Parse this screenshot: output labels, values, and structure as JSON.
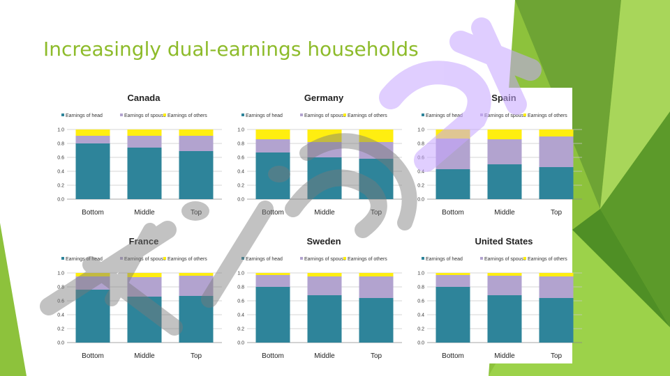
{
  "slide": {
    "title": "Increasingly dual-earnings households"
  },
  "colors": {
    "head": "#2e849a",
    "spouse": "#b2a3cf",
    "others": "#ffee10",
    "accent": "#8dbb2a"
  },
  "chart_data": [
    {
      "type": "bar",
      "title": "Canada",
      "categories": [
        "Bottom",
        "Middle",
        "Top"
      ],
      "series": [
        {
          "name": "Earnings of head",
          "values": [
            0.8,
            0.74,
            0.69
          ]
        },
        {
          "name": "Earnings of spouse",
          "values": [
            0.11,
            0.17,
            0.22
          ]
        },
        {
          "name": "Earnings of others",
          "values": [
            0.09,
            0.09,
            0.09
          ]
        }
      ],
      "ylim": [
        0,
        1.0
      ],
      "yticks": [
        "0.0",
        "0.2",
        "0.4",
        "0.6",
        "0.8",
        "1.0"
      ],
      "stacked": true,
      "grid": true,
      "legend": "top"
    },
    {
      "type": "bar",
      "title": "Germany",
      "categories": [
        "Bottom",
        "Middle",
        "Top"
      ],
      "series": [
        {
          "name": "Earnings of head",
          "values": [
            0.67,
            0.6,
            0.58
          ]
        },
        {
          "name": "Earnings of spouse",
          "values": [
            0.19,
            0.22,
            0.24
          ]
        },
        {
          "name": "Earnings of others",
          "values": [
            0.14,
            0.18,
            0.18
          ]
        }
      ],
      "ylim": [
        0,
        1.0
      ],
      "yticks": [
        "0.0",
        "0.2",
        "0.4",
        "0.6",
        "0.8",
        "1.0"
      ],
      "stacked": true,
      "grid": true,
      "legend": "top"
    },
    {
      "type": "bar",
      "title": "Spain",
      "categories": [
        "Bottom",
        "Middle",
        "Top"
      ],
      "series": [
        {
          "name": "Earnings of head",
          "values": [
            0.43,
            0.5,
            0.46
          ]
        },
        {
          "name": "Earnings of spouse",
          "values": [
            0.44,
            0.36,
            0.44
          ]
        },
        {
          "name": "Earnings of others",
          "values": [
            0.13,
            0.14,
            0.1
          ]
        }
      ],
      "ylim": [
        0,
        1.0
      ],
      "yticks": [
        "0.0",
        "0.2",
        "0.4",
        "0.6",
        "0.8",
        "1.0"
      ],
      "stacked": true,
      "grid": true,
      "legend": "top"
    },
    {
      "type": "bar",
      "title": "France",
      "categories": [
        "Bottom",
        "Middle",
        "Top"
      ],
      "series": [
        {
          "name": "Earnings of head",
          "values": [
            0.76,
            0.66,
            0.67
          ]
        },
        {
          "name": "Earnings of spouse",
          "values": [
            0.19,
            0.28,
            0.29
          ]
        },
        {
          "name": "Earnings of others",
          "values": [
            0.05,
            0.06,
            0.04
          ]
        }
      ],
      "ylim": [
        0,
        1.0
      ],
      "yticks": [
        "0.0",
        "0.2",
        "0.4",
        "0.6",
        "0.8",
        "1.0"
      ],
      "stacked": true,
      "grid": true,
      "legend": "top"
    },
    {
      "type": "bar",
      "title": "Sweden",
      "categories": [
        "Bottom",
        "Middle",
        "Top"
      ],
      "series": [
        {
          "name": "Earnings of head",
          "values": [
            0.8,
            0.68,
            0.64
          ]
        },
        {
          "name": "Earnings of spouse",
          "values": [
            0.17,
            0.27,
            0.31
          ]
        },
        {
          "name": "Earnings of others",
          "values": [
            0.03,
            0.05,
            0.05
          ]
        }
      ],
      "ylim": [
        0,
        1.0
      ],
      "yticks": [
        "0.0",
        "0.2",
        "0.4",
        "0.6",
        "0.8",
        "1.0"
      ],
      "stacked": true,
      "grid": true,
      "legend": "top"
    },
    {
      "type": "bar",
      "title": "United States",
      "categories": [
        "Bottom",
        "Middle",
        "Top"
      ],
      "series": [
        {
          "name": "Earnings of head",
          "values": [
            0.8,
            0.68,
            0.64
          ]
        },
        {
          "name": "Earnings of spouse",
          "values": [
            0.17,
            0.28,
            0.31
          ]
        },
        {
          "name": "Earnings of others",
          "values": [
            0.03,
            0.04,
            0.05
          ]
        }
      ],
      "ylim": [
        0,
        1.0
      ],
      "yticks": [
        "0.0",
        "0.2",
        "0.4",
        "0.6",
        "0.8",
        "1.0"
      ],
      "stacked": true,
      "grid": true,
      "legend": "top"
    }
  ]
}
